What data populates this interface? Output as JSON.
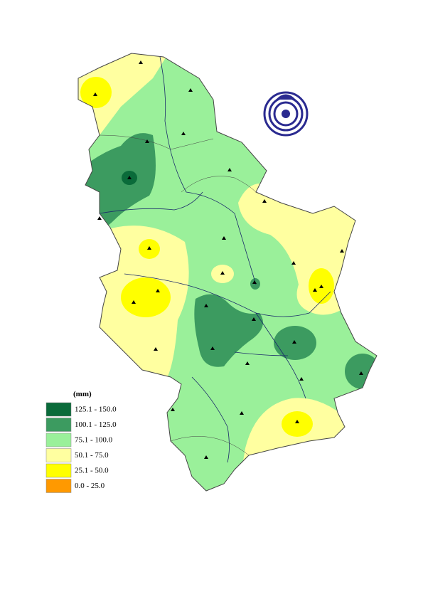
{
  "legend": {
    "title": "(mm)",
    "items": [
      {
        "label": "125.1 - 150.0",
        "color": "#0a6b3a"
      },
      {
        "label": "100.1 - 125.0",
        "color": "#3c9b60"
      },
      {
        "label": "75.1 - 100.0",
        "color": "#9af09a"
      },
      {
        "label": "50.1 - 75.0",
        "color": "#ffffa0"
      },
      {
        "label": "25.1 - 50.0",
        "color": "#ffff00"
      },
      {
        "label": "0.0 - 25.0",
        "color": "#ff9900"
      }
    ]
  }
}
